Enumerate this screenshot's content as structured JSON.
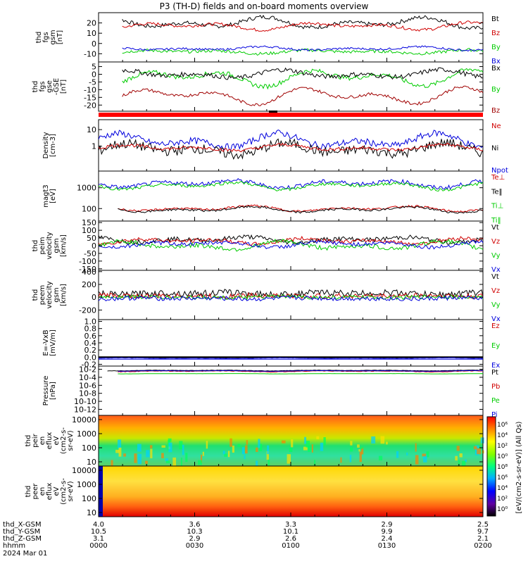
{
  "title": "P3 (TH-D) fields and on-board moments overview",
  "panels": [
    {
      "ylabel": [
        "thd",
        "fgs",
        "gsm",
        "[nT]"
      ],
      "ticks": [
        "20",
        "10",
        "0",
        "-10"
      ],
      "tick_vals": [
        20,
        10,
        0,
        -10
      ],
      "ylim": [
        -18,
        30
      ],
      "legend": [
        {
          "text": "Bt",
          "color": "#000000"
        },
        {
          "text": "Bz",
          "color": "#d00000"
        },
        {
          "text": "By",
          "color": "#00cc00"
        },
        {
          "text": "Bx",
          "color": "#0000dd"
        }
      ]
    },
    {
      "ylabel": [
        "thd",
        "fgs",
        "gse",
        "-GSE",
        "[nT]"
      ],
      "ticks": [
        "5",
        "0",
        "-5",
        "-10",
        "-15",
        "-20"
      ],
      "tick_vals": [
        5,
        0,
        -5,
        -10,
        -15,
        -20
      ],
      "ylim": [
        -24,
        8
      ],
      "legend": [
        {
          "text": "Bx",
          "color": "#000000"
        },
        {
          "text": "By",
          "color": "#00cc00"
        },
        {
          "text": "Bz",
          "color": "#a00000"
        }
      ]
    },
    {
      "ylabel": [
        "Density",
        "[cm-3]"
      ],
      "ticks": [
        "10",
        "1"
      ],
      "tick_vals": [
        1,
        0
      ],
      "ylim": [
        -1.5,
        1.6
      ],
      "log": true,
      "legend": [
        {
          "text": "Ne",
          "color": "#d00000"
        },
        {
          "text": "Ni",
          "color": "#000000"
        },
        {
          "text": "Npot",
          "color": "#0000dd"
        }
      ]
    },
    {
      "ylabel": [
        "magt3",
        "[eV]"
      ],
      "ticks": [
        "1000",
        "100"
      ],
      "tick_vals": [
        3,
        2
      ],
      "ylim": [
        1.4,
        3.8
      ],
      "log": true,
      "legend": [
        {
          "text": "Te⊥",
          "color": "#d00000"
        },
        {
          "text": "Te‖",
          "color": "#000000"
        },
        {
          "text": "Ti⊥",
          "color": "#00cc00"
        },
        {
          "text": "Ti‖",
          "color": "#00cc00"
        }
      ]
    },
    {
      "ylabel": [
        "thd",
        "peim",
        "velocity",
        "gsm",
        "[km/s]"
      ],
      "ticks": [
        "150",
        "100",
        "50",
        "0",
        "-50",
        "-100",
        "-150"
      ],
      "tick_vals": [
        150,
        100,
        50,
        0,
        -50,
        -100,
        -150
      ],
      "ylim": [
        -160,
        160
      ],
      "legend": [
        {
          "text": "Vt",
          "color": "#000000"
        },
        {
          "text": "Vz",
          "color": "#d00000"
        },
        {
          "text": "Vy",
          "color": "#00cc00"
        },
        {
          "text": "Vx",
          "color": "#0000dd"
        }
      ]
    },
    {
      "ylabel": [
        "thd",
        "peem",
        "velocity",
        "gsm",
        "[km/s]"
      ],
      "ticks": [
        "400",
        "200",
        "0",
        "-200"
      ],
      "tick_vals": [
        400,
        200,
        0,
        -200
      ],
      "ylim": [
        -350,
        420
      ],
      "legend": [
        {
          "text": "Vt",
          "color": "#000000"
        },
        {
          "text": "Vz",
          "color": "#d00000"
        },
        {
          "text": "Vy",
          "color": "#00cc00"
        },
        {
          "text": "Vx",
          "color": "#0000dd"
        }
      ]
    },
    {
      "ylabel": [
        "E=-VxB",
        "[mV/m]"
      ],
      "ticks": [
        "1.0",
        "0.8",
        "0.6",
        "0.4",
        "0.2",
        "0.0",
        "-0.2"
      ],
      "tick_vals": [
        1.0,
        0.8,
        0.6,
        0.4,
        0.2,
        0.0,
        -0.2
      ],
      "ylim": [
        -0.25,
        1.05
      ],
      "legend": [
        {
          "text": "Ez",
          "color": "#d00000"
        },
        {
          "text": "Ey",
          "color": "#00cc00"
        },
        {
          "text": "Ex",
          "color": "#0000dd"
        }
      ]
    },
    {
      "ylabel": [
        "Pressure",
        "[nPa]"
      ],
      "ticks": [
        "10-2",
        "10-4",
        "10-6",
        "10-8",
        "10-10",
        "10-12"
      ],
      "tick_vals": [
        -2,
        -4,
        -6,
        -8,
        -10,
        -12
      ],
      "ylim": [
        -13.5,
        -1.2
      ],
      "log": true,
      "legend": [
        {
          "text": "Pt",
          "color": "#000000"
        },
        {
          "text": "Pb",
          "color": "#d00000"
        },
        {
          "text": "Pe",
          "color": "#00cc00"
        },
        {
          "text": "Pi",
          "color": "#0000dd"
        }
      ]
    },
    {
      "ylabel": [
        "thd",
        "peir",
        "en",
        "eflux",
        "eV",
        "(cm2-s-",
        "sr-eV)"
      ],
      "ticks": [
        "10000",
        "1000",
        "100",
        "10"
      ],
      "tick_vals": [
        4,
        3,
        2,
        1
      ],
      "ylim": [
        0.7,
        4.3
      ],
      "log": true,
      "legend": []
    },
    {
      "ylabel": [
        "thd",
        "peer",
        "en",
        "eflux",
        "eV",
        "(cm2-s-",
        "sr-eV)"
      ],
      "ticks": [
        "10000",
        "1000",
        "100",
        "10"
      ],
      "tick_vals": [
        4,
        3,
        2,
        1
      ],
      "ylim": [
        0.7,
        4.3
      ],
      "log": true,
      "legend": []
    }
  ],
  "colorbar": {
    "label": "[eV/(cm2-s-sr-eV)] (All Qs)",
    "ticks": [
      "10⁶",
      "10⁴",
      "10²",
      "10⁰",
      "10⁸",
      "10⁶",
      "10⁴",
      "10²",
      "10⁰"
    ]
  },
  "xaxis": {
    "rows": [
      {
        "label": "thd_X-GSM",
        "values": [
          "4.0",
          "3.6",
          "3.3",
          "2.9",
          "2.5"
        ]
      },
      {
        "label": "thd_Y-GSM",
        "values": [
          "10.5",
          "10.3",
          "10.1",
          "9.9",
          "9.7"
        ]
      },
      {
        "label": "thd_Z-GSM",
        "values": [
          "3.1",
          "2.9",
          "2.6",
          "2.4",
          "2.1"
        ]
      },
      {
        "label": "hhmm",
        "values": [
          "0000",
          "0030",
          "0100",
          "0130",
          "0200"
        ]
      }
    ],
    "date": "2024 Mar 01"
  },
  "chart_data": {
    "type": "line",
    "title": "P3 (TH-D) fields and on-board moments overview",
    "xlabel": "hhmm",
    "x_ticks": [
      "0000",
      "0030",
      "0100",
      "0130",
      "0200"
    ],
    "series_summary": [
      {
        "panel": "fgs gsm",
        "name": "Bt",
        "range": [
          10,
          30
        ]
      },
      {
        "panel": "fgs gsm",
        "name": "Bz",
        "range": [
          10,
          25
        ]
      },
      {
        "panel": "fgs gsm",
        "name": "By",
        "range": [
          -12,
          -2
        ]
      },
      {
        "panel": "fgs gsm",
        "name": "Bx",
        "range": [
          -10,
          -3
        ]
      },
      {
        "panel": "Density",
        "name": "Ne",
        "range": [
          0.3,
          3
        ]
      },
      {
        "panel": "Density",
        "name": "Npot",
        "range": [
          0.5,
          30
        ]
      },
      {
        "panel": "magt3",
        "name": "Ti",
        "range": [
          300,
          3000
        ]
      },
      {
        "panel": "magt3",
        "name": "Te",
        "range": [
          60,
          200
        ]
      }
    ]
  }
}
